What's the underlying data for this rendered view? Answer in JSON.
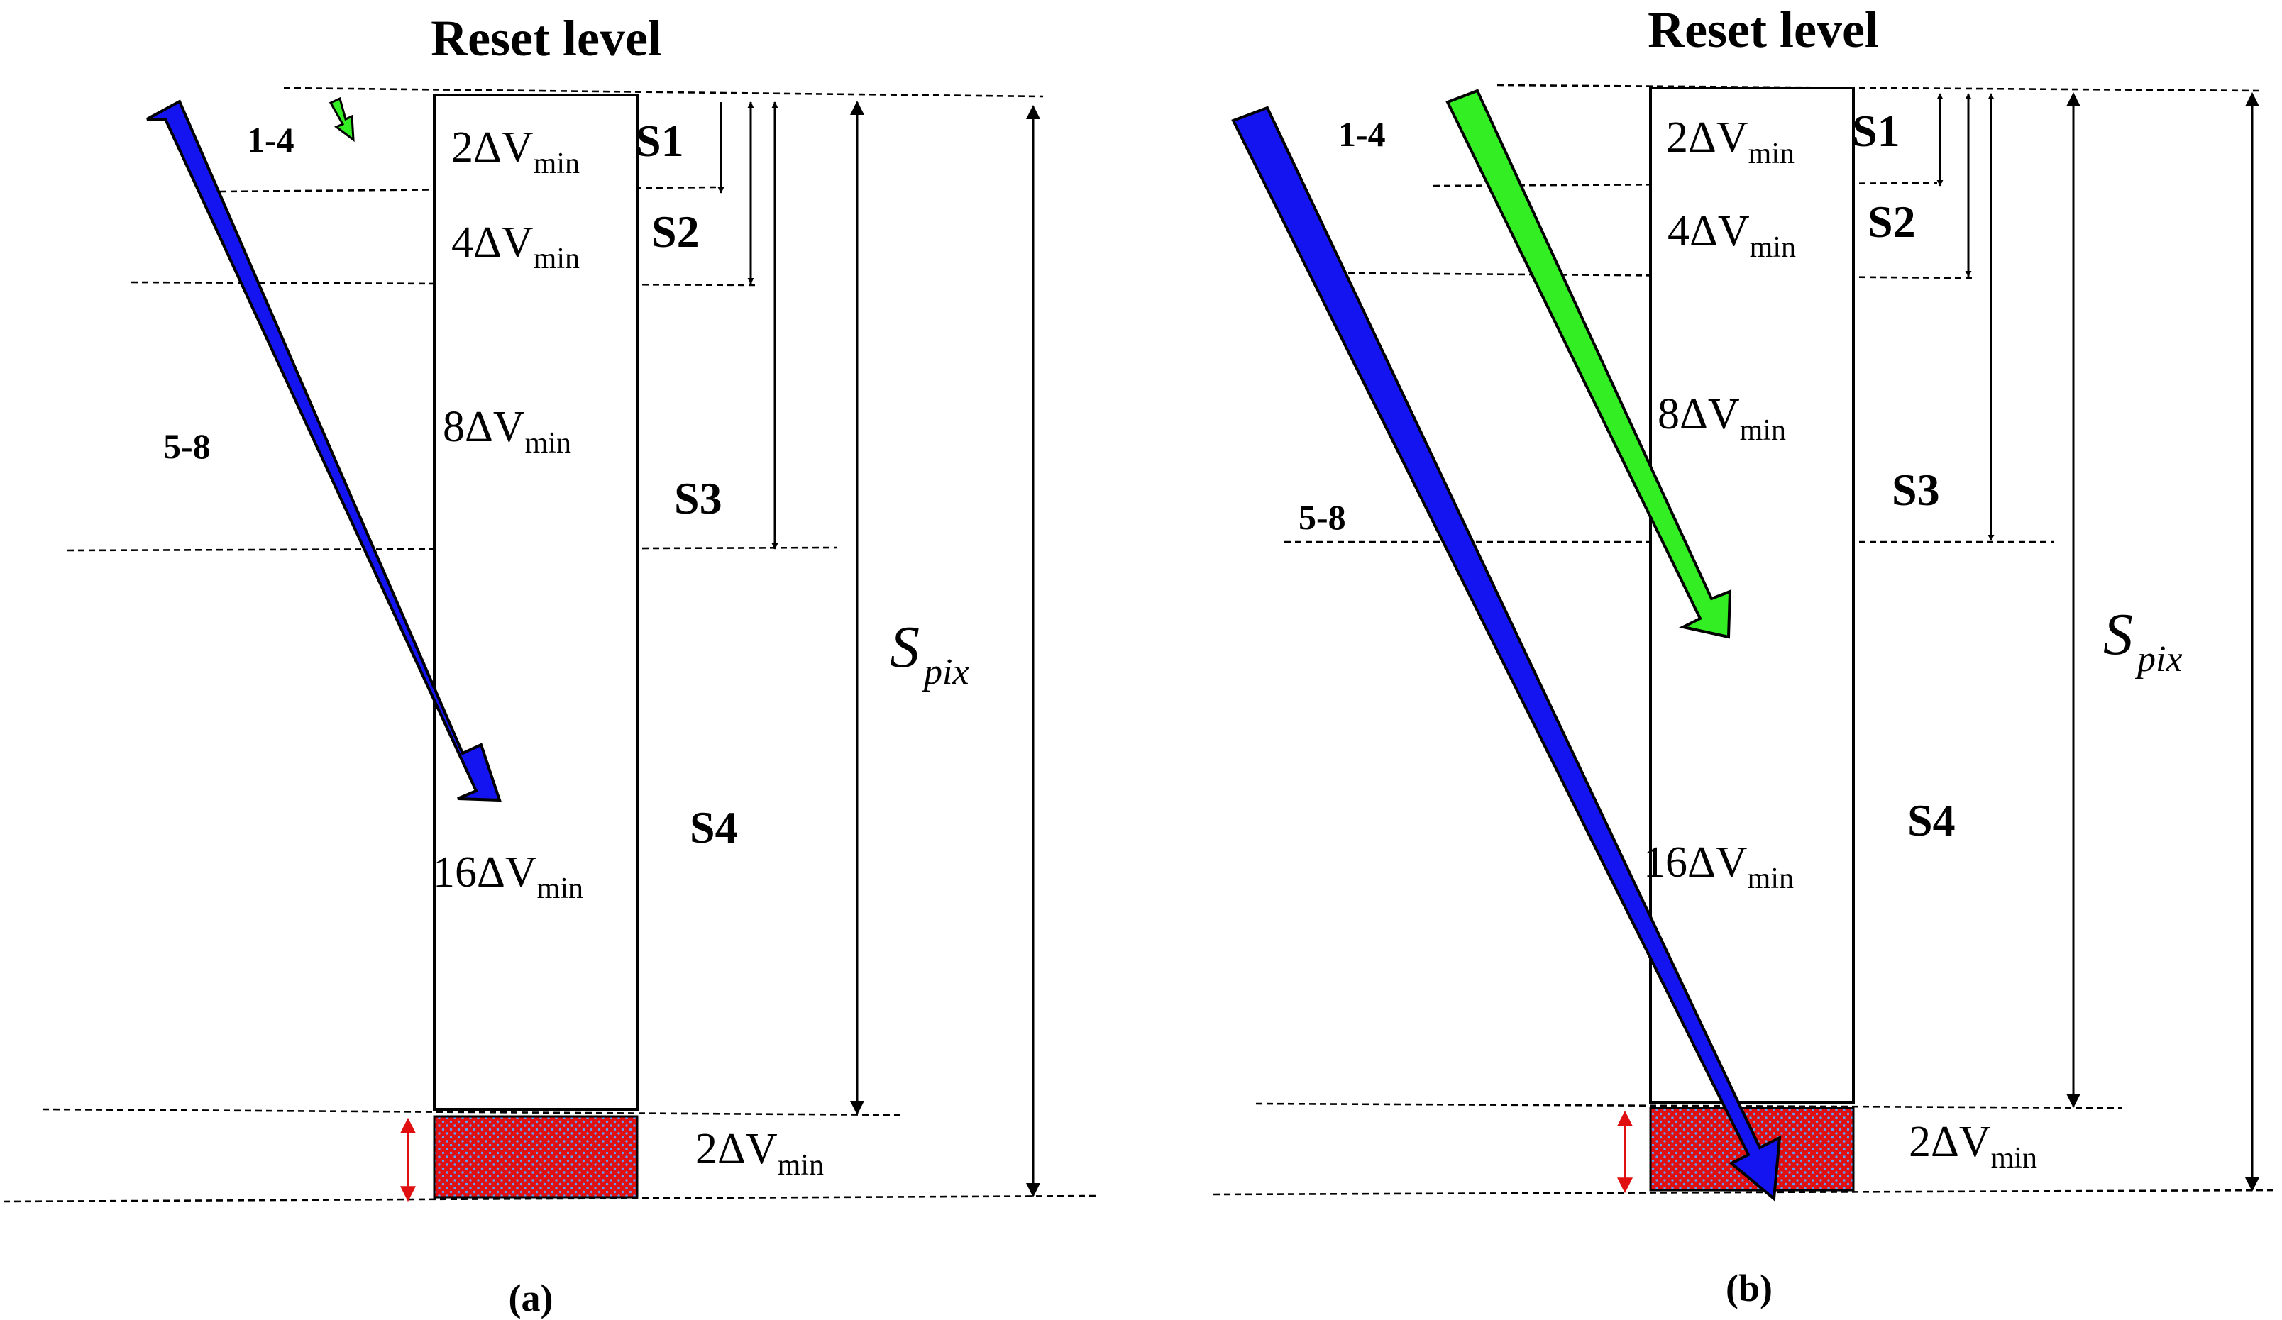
{
  "panels": [
    {
      "reset_label": "Reset level",
      "cells": [
        "2ΔV",
        "4ΔV",
        "8ΔV",
        "16ΔV"
      ],
      "cell_subscript": "min",
      "residual": "2ΔV",
      "residual_subscript": "min",
      "segments": [
        "S1",
        "S2",
        "S3",
        "S4"
      ],
      "group_small": "1-4",
      "group_large": "5-8",
      "spix_main": "S",
      "spix_sub": "pix",
      "caption": "(a)"
    },
    {
      "reset_label": "Reset level",
      "cells": [
        "2ΔV",
        "4ΔV",
        "8ΔV",
        "16ΔV"
      ],
      "cell_subscript": "min",
      "residual": "2ΔV",
      "residual_subscript": "min",
      "segments": [
        "S1",
        "S2",
        "S3",
        "S4"
      ],
      "group_small": "1-4",
      "group_large": "5-8",
      "spix_main": "S",
      "spix_sub": "pix",
      "caption": "(b)"
    }
  ],
  "colors": {
    "arrow_large": "#1414f0",
    "arrow_small": "#33ee22",
    "residual_fill": "#e01010",
    "residual_dots": "#5aa0ff",
    "residual_arrow": "#e01010"
  }
}
